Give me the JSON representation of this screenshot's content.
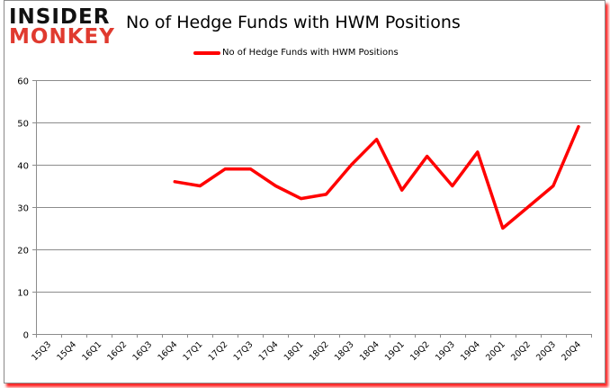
{
  "logo": {
    "line1": "INSIDER",
    "line2": "MONKEY"
  },
  "chart_data": {
    "type": "line",
    "title": "No of Hedge Funds with HWM Positions",
    "xlabel": "",
    "ylabel": "",
    "ylim": [
      0,
      60
    ],
    "yticks": [
      0,
      10,
      20,
      30,
      40,
      50,
      60
    ],
    "grid": true,
    "legend_position": "top",
    "categories": [
      "15Q3",
      "15Q4",
      "16Q1",
      "16Q2",
      "16Q3",
      "16Q4",
      "17Q1",
      "17Q2",
      "17Q3",
      "17Q4",
      "18Q1",
      "18Q2",
      "18Q3",
      "18Q4",
      "19Q1",
      "19Q2",
      "19Q3",
      "19Q4",
      "20Q1",
      "20Q2",
      "20Q3",
      "20Q4"
    ],
    "series": [
      {
        "name": "No of Hedge Funds with HWM Positions",
        "color": "#ff0000",
        "values": [
          null,
          null,
          null,
          null,
          null,
          36,
          35,
          39,
          39,
          35,
          32,
          33,
          40,
          46,
          34,
          42,
          35,
          43,
          25,
          30,
          35,
          49
        ]
      }
    ]
  }
}
